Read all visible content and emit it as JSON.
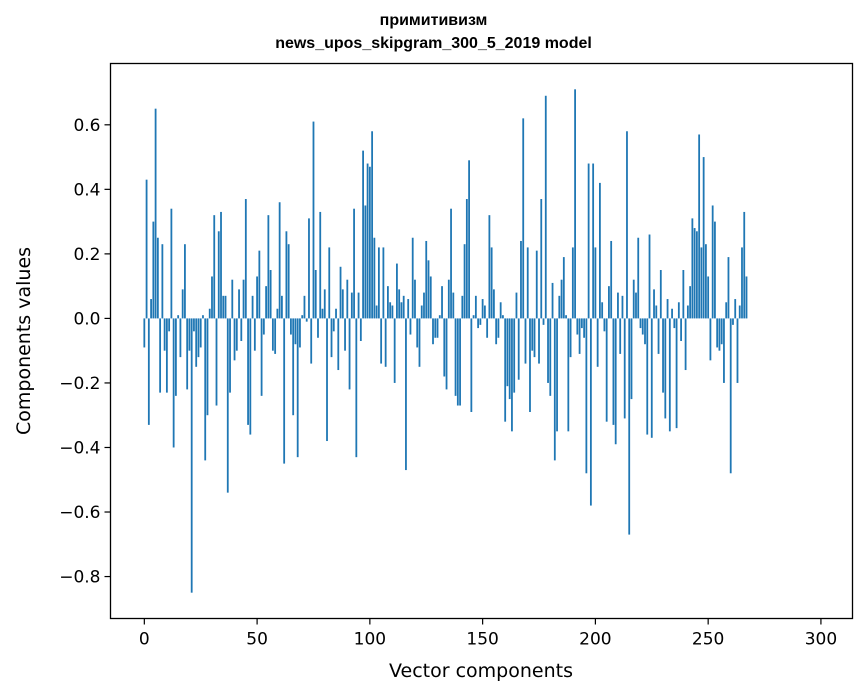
{
  "chart_data": {
    "type": "bar",
    "title_line1": "примитивизм",
    "title_line2": "news_upos_skipgram_300_5_2019 model",
    "xlabel": "Vector components",
    "ylabel": "Components values",
    "xlim": [
      -15,
      314
    ],
    "ylim": [
      -0.93,
      0.79
    ],
    "x_ticks": [
      0,
      50,
      100,
      150,
      200,
      250,
      300
    ],
    "x_tick_labels": [
      "0",
      "50",
      "100",
      "150",
      "200",
      "250",
      "300"
    ],
    "y_ticks": [
      -0.8,
      -0.6,
      -0.4,
      -0.2,
      0.0,
      0.2,
      0.4,
      0.6
    ],
    "y_tick_labels": [
      "−0.8",
      "−0.6",
      "−0.4",
      "−0.2",
      "0.0",
      "0.2",
      "0.4",
      "0.6"
    ],
    "bar_color": "#1f77b4",
    "grid": false,
    "values": [
      -0.09,
      0.43,
      -0.33,
      0.06,
      0.3,
      0.65,
      0.25,
      -0.23,
      0.23,
      -0.1,
      -0.23,
      -0.04,
      0.34,
      -0.4,
      -0.24,
      0.01,
      -0.12,
      0.09,
      0.23,
      -0.22,
      -0.1,
      -0.85,
      -0.04,
      -0.15,
      -0.12,
      -0.09,
      0.01,
      -0.44,
      -0.3,
      0.03,
      0.13,
      0.32,
      -0.27,
      0.27,
      0.33,
      0.07,
      0.07,
      -0.54,
      -0.23,
      0.12,
      -0.13,
      -0.1,
      0.09,
      -0.07,
      0.12,
      0.37,
      -0.33,
      -0.36,
      0.07,
      -0.1,
      0.13,
      0.21,
      -0.24,
      -0.05,
      0.1,
      0.32,
      0.15,
      -0.1,
      -0.11,
      0.03,
      0.36,
      0.07,
      -0.45,
      0.27,
      0.23,
      -0.05,
      -0.3,
      -0.08,
      -0.43,
      -0.09,
      0.01,
      0.07,
      -0.01,
      0.31,
      -0.14,
      0.61,
      0.15,
      -0.06,
      0.33,
      0.03,
      0.09,
      -0.38,
      0.22,
      -0.12,
      -0.04,
      0.03,
      -0.16,
      0.16,
      0.09,
      -0.1,
      0.12,
      -0.22,
      0.08,
      0.34,
      -0.43,
      0.08,
      -0.07,
      0.52,
      0.35,
      0.48,
      0.47,
      0.58,
      0.25,
      0.04,
      0.22,
      -0.14,
      0.22,
      -0.15,
      0.1,
      0.05,
      0.04,
      -0.2,
      0.17,
      0.09,
      0.05,
      0.07,
      -0.47,
      0.06,
      -0.05,
      0.25,
      0.12,
      -0.09,
      -0.15,
      0.04,
      0.08,
      0.24,
      0.18,
      0.13,
      -0.08,
      -0.06,
      -0.06,
      0.01,
      0.1,
      -0.18,
      -0.22,
      0.12,
      0.34,
      0.08,
      -0.24,
      -0.27,
      -0.27,
      0.07,
      0.23,
      0.37,
      0.49,
      -0.29,
      0.01,
      0.07,
      -0.03,
      -0.02,
      0.06,
      0.04,
      -0.06,
      0.32,
      0.22,
      0.09,
      -0.08,
      -0.06,
      0.05,
      0.01,
      -0.32,
      -0.21,
      -0.25,
      -0.35,
      -0.23,
      0.08,
      -0.19,
      0.24,
      0.62,
      -0.14,
      0.22,
      -0.29,
      -0.1,
      -0.12,
      0.21,
      -0.14,
      0.37,
      -0.02,
      0.69,
      -0.2,
      -0.24,
      0.11,
      -0.44,
      -0.35,
      0.07,
      0.12,
      0.19,
      0.01,
      -0.35,
      -0.12,
      0.22,
      0.71,
      -0.05,
      -0.11,
      -0.03,
      -0.06,
      -0.48,
      0.48,
      -0.58,
      0.48,
      0.22,
      -0.15,
      0.42,
      0.05,
      -0.04,
      -0.32,
      0.1,
      0.24,
      -0.33,
      -0.39,
      0.08,
      -0.11,
      0.07,
      -0.31,
      0.58,
      -0.67,
      -0.25,
      0.12,
      0.08,
      0.25,
      -0.03,
      -0.05,
      -0.08,
      -0.36,
      0.26,
      -0.37,
      0.09,
      0.04,
      -0.11,
      0.15,
      -0.23,
      -0.31,
      0.06,
      -0.35,
      0.03,
      -0.03,
      -0.34,
      0.05,
      -0.07,
      0.15,
      -0.16,
      0.04,
      0.1,
      0.31,
      0.28,
      0.27,
      0.57,
      0.22,
      0.5,
      0.23,
      0.13,
      -0.13,
      0.35,
      0.3,
      -0.09,
      -0.1,
      -0.08,
      -0.2,
      0.05,
      0.19,
      -0.48,
      -0.02,
      0.06,
      -0.2,
      0.04,
      0.22,
      0.33,
      0.13
    ]
  }
}
